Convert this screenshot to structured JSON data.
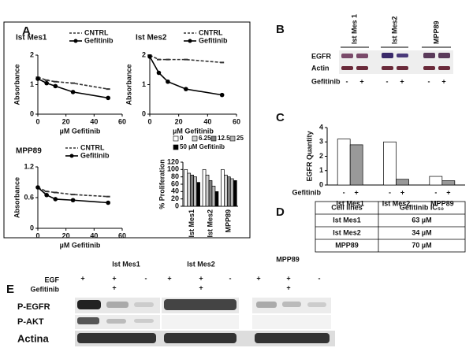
{
  "panel_labels": [
    "A",
    "B",
    "C",
    "D",
    "E"
  ],
  "chart_data": [
    {
      "type": "line",
      "title": "Ist Mes1",
      "xlabel": "µM Gefitinib",
      "ylabel": "Absorbance",
      "x": [
        0,
        6.25,
        12.5,
        25,
        50
      ],
      "xlim": [
        0,
        60
      ],
      "xticks": [
        0,
        20,
        40,
        60
      ],
      "ylim": [
        0,
        2
      ],
      "yticks": [
        0,
        1,
        2
      ],
      "series": [
        {
          "name": "CNTRL",
          "color": "#333333",
          "dashed": true,
          "values": [
            1.25,
            1.15,
            1.1,
            1.05,
            0.85
          ]
        },
        {
          "name": "Gefitinib",
          "color": "#000000",
          "dashed": false,
          "values": [
            1.2,
            1.05,
            0.95,
            0.75,
            0.55
          ]
        }
      ]
    },
    {
      "type": "line",
      "title": "Ist Mes2",
      "xlabel": "µM Gefitinib",
      "ylabel": "Absorbance",
      "x": [
        0,
        6.25,
        12.5,
        25,
        50
      ],
      "xlim": [
        0,
        60
      ],
      "xticks": [
        0,
        20,
        40,
        60
      ],
      "ylim": [
        0,
        2
      ],
      "yticks": [
        0,
        1,
        2
      ],
      "series": [
        {
          "name": "CNTRL",
          "color": "#333333",
          "dashed": true,
          "values": [
            2,
            1.85,
            1.85,
            1.85,
            1.75
          ]
        },
        {
          "name": "Gefitinib",
          "color": "#000000",
          "dashed": false,
          "values": [
            1.95,
            1.4,
            1.1,
            0.85,
            0.65
          ]
        }
      ]
    },
    {
      "type": "line",
      "title": "MPP89",
      "xlabel": "µM Gefitinib",
      "ylabel": "Absorbance",
      "x": [
        0,
        6.25,
        12.5,
        25,
        50
      ],
      "xlim": [
        0,
        60
      ],
      "xticks": [
        0,
        20,
        40,
        60
      ],
      "ylim": [
        0,
        1.2
      ],
      "yticks": [
        0,
        0.6,
        1.2
      ],
      "series": [
        {
          "name": "CNTRL",
          "color": "#333333",
          "dashed": true,
          "values": [
            0.8,
            0.72,
            0.7,
            0.66,
            0.62
          ]
        },
        {
          "name": "Gefitinib",
          "color": "#000000",
          "dashed": false,
          "values": [
            0.8,
            0.65,
            0.57,
            0.55,
            0.5
          ]
        }
      ]
    },
    {
      "type": "bar",
      "ylabel": "% Proliferation",
      "categories": [
        "Ist Mes1",
        "Ist Mes2",
        "MPP89"
      ],
      "ylim": [
        0,
        120
      ],
      "yticks": [
        0,
        20,
        40,
        60,
        80,
        100,
        120
      ],
      "series": [
        {
          "name": "0",
          "color": "#ffffff",
          "values": [
            100,
            100,
            100
          ]
        },
        {
          "name": "6.25",
          "color": "#d0d0d0",
          "values": [
            90,
            85,
            85
          ]
        },
        {
          "name": "12.5",
          "color": "#808080",
          "values": [
            85,
            70,
            80
          ]
        },
        {
          "name": "25",
          "color": "#b8b8b8",
          "values": [
            80,
            55,
            75
          ]
        },
        {
          "name": "50 µM Gefitinib",
          "color": "#000000",
          "values": [
            65,
            40,
            70
          ]
        }
      ]
    },
    {
      "type": "bar",
      "ylabel": "EGFR Quantity",
      "legend_title": "Gefitinib",
      "categories": [
        "Ist Mes1",
        "Ist Mes2",
        "MPP89"
      ],
      "ylim": [
        0,
        4
      ],
      "yticks": [
        0,
        1,
        2,
        3,
        4
      ],
      "series": [
        {
          "name": "-",
          "color": "#ffffff",
          "values": [
            3.2,
            3.0,
            0.6
          ]
        },
        {
          "name": "+",
          "color": "#999999",
          "values": [
            2.8,
            0.4,
            0.3
          ]
        }
      ]
    }
  ],
  "blot_b": {
    "lanes": [
      "Ist Mes 1",
      "Ist Mes2",
      "MPP89"
    ],
    "rows": [
      "EGFR",
      "Actin"
    ],
    "treatment": "Gefitinib",
    "signs": [
      "-",
      "+",
      "-",
      "+",
      "-",
      "+"
    ]
  },
  "table": {
    "header": [
      "Cell lines",
      "Gefitinib IC₅₀"
    ],
    "rows": [
      [
        "Ist Mes1",
        "63 µM"
      ],
      [
        "Ist Mes2",
        "34 µM"
      ],
      [
        "MPP89",
        "70 µM"
      ]
    ]
  },
  "blot_e": {
    "groups": [
      "Ist Mes1",
      "Ist Mes2",
      "MPP89"
    ],
    "conditions": [
      {
        "name": "EGF",
        "signs": [
          "+",
          "+",
          "-",
          "+",
          "+",
          "-",
          "+",
          "+",
          "-"
        ]
      },
      {
        "name": "Gefitinib",
        "signs": [
          null,
          "+",
          null,
          null,
          "+",
          null,
          null,
          "+",
          null
        ]
      }
    ],
    "rows": [
      "P-EGFR",
      "P-AKT",
      "Actina"
    ]
  }
}
